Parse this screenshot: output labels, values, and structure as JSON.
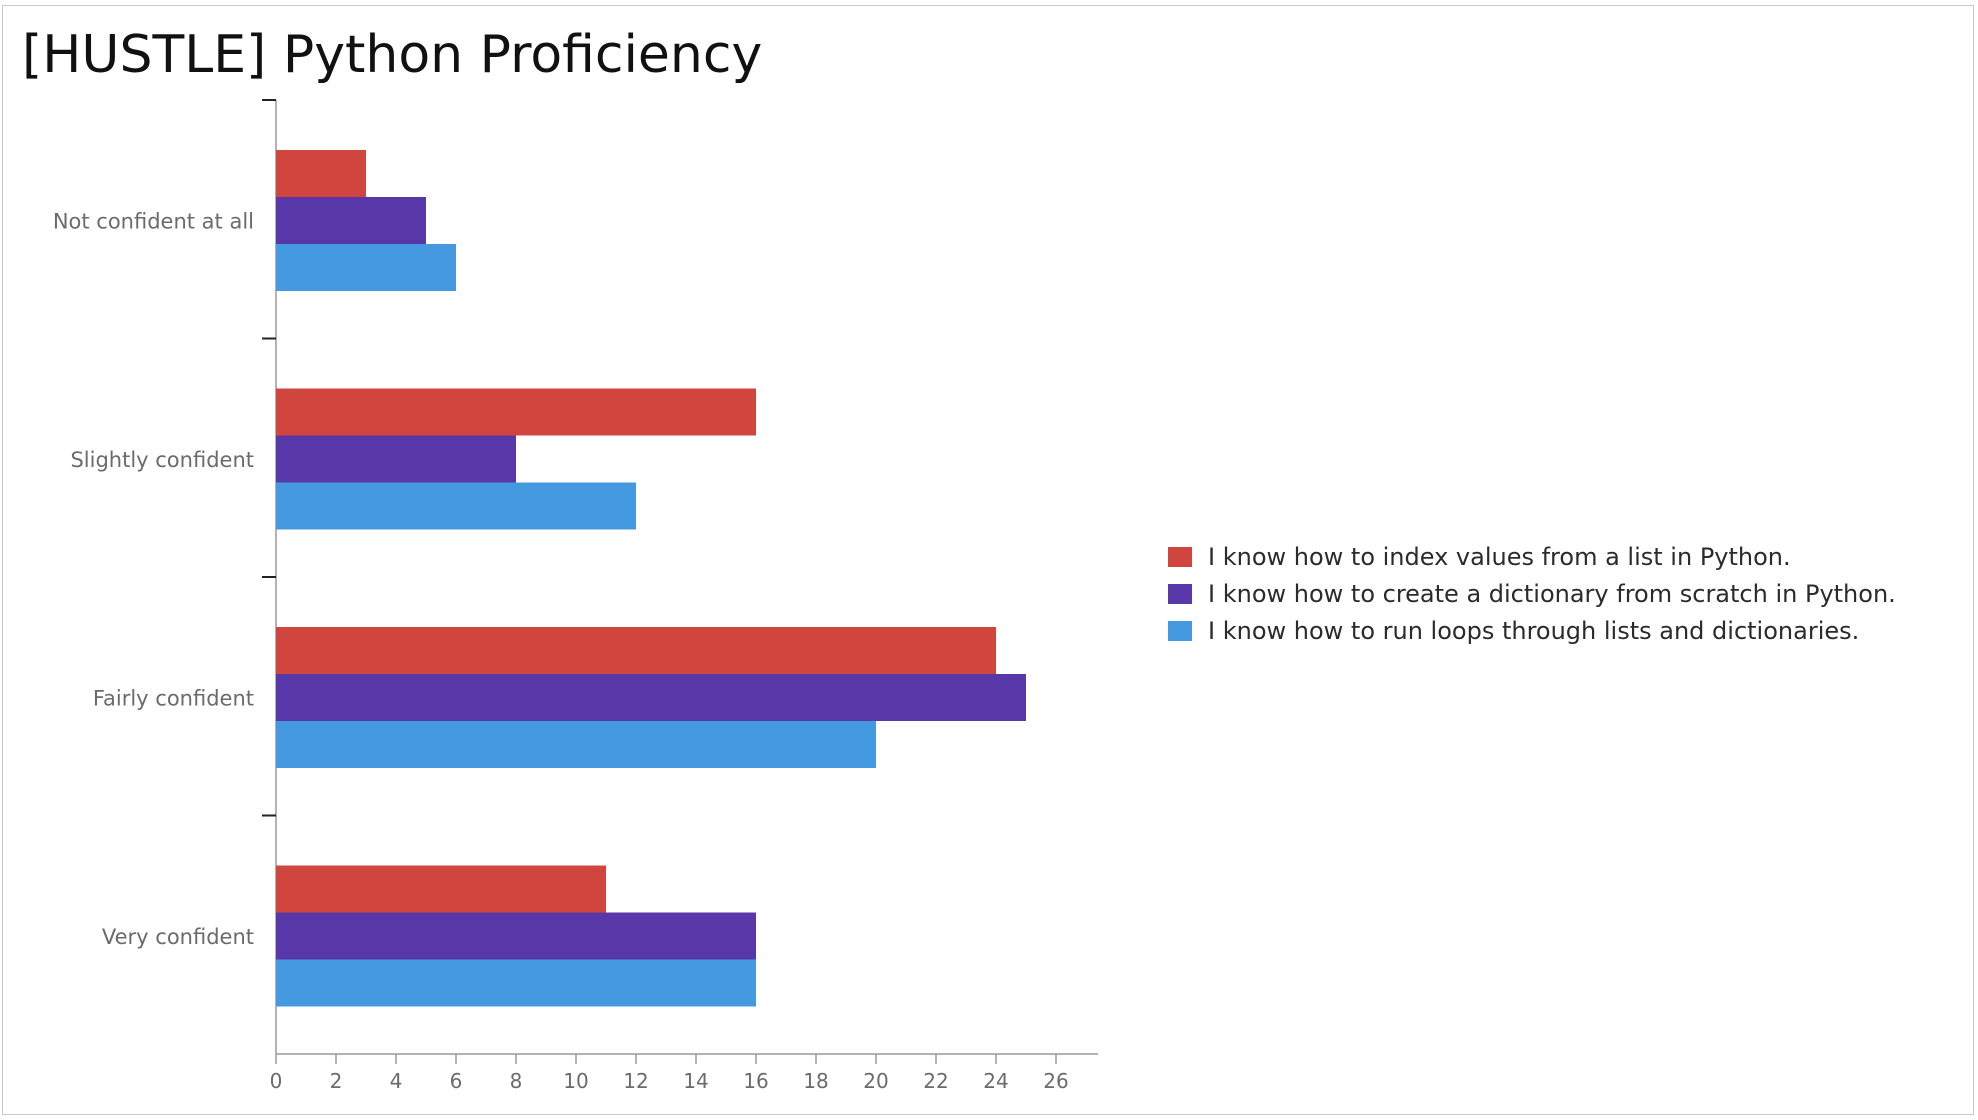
{
  "title": "[HUSTLE] Python Proficiency",
  "chart_data": {
    "type": "bar",
    "orientation": "horizontal",
    "title": "[HUSTLE] Python Proficiency",
    "categories": [
      "Not confident at all",
      "Slightly confident",
      "Fairly confident",
      "Very confident"
    ],
    "series": [
      {
        "name": "I know how to index values from a list in Python.",
        "color": "#d0463f",
        "values": [
          3,
          16,
          24,
          11
        ]
      },
      {
        "name": "I know how to create a dictionary from scratch in Python.",
        "color": "#5837a9",
        "values": [
          5,
          8,
          25,
          16
        ]
      },
      {
        "name": "I know how to run loops through lists and dictionaries.",
        "color": "#4599e0",
        "values": [
          6,
          12,
          20,
          16
        ]
      }
    ],
    "x_ticks": [
      "0",
      "2",
      "4",
      "6",
      "8",
      "10",
      "12",
      "14",
      "16",
      "18",
      "20",
      "22",
      "24",
      "26"
    ],
    "xlim": [
      0,
      27
    ],
    "xlabel": "",
    "ylabel": "",
    "grid": false,
    "legend_position": "right"
  }
}
